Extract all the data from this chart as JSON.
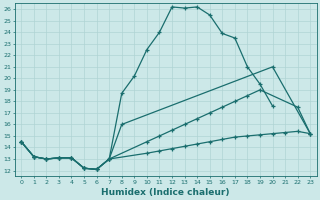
{
  "xlabel": "Humidex (Indice chaleur)",
  "bg_color": "#cce8e8",
  "line_color": "#1a6e6e",
  "grid_color": "#b0d4d4",
  "xlim": [
    -0.5,
    23.5
  ],
  "ylim": [
    11.5,
    26.5
  ],
  "xticks": [
    0,
    1,
    2,
    3,
    4,
    5,
    6,
    7,
    8,
    9,
    10,
    11,
    12,
    13,
    14,
    15,
    16,
    17,
    18,
    19,
    20,
    21,
    22,
    23
  ],
  "yticks": [
    12,
    13,
    14,
    15,
    16,
    17,
    18,
    19,
    20,
    21,
    22,
    23,
    24,
    25,
    26
  ],
  "lines": [
    {
      "x": [
        0,
        1,
        2,
        3,
        4,
        5,
        6,
        7,
        8,
        9,
        10,
        11,
        12,
        13,
        14,
        15,
        16,
        17,
        18,
        19,
        20,
        21,
        22,
        23
      ],
      "y": [
        14.5,
        13.2,
        13.0,
        13.1,
        13.1,
        12.2,
        12.1,
        13.0,
        18.7,
        20.2,
        22.5,
        24.0,
        26.2,
        26.1,
        26.2,
        25.5,
        23.9,
        23.5,
        21.0,
        19.5,
        17.6,
        null,
        null,
        null
      ]
    },
    {
      "x": [
        0,
        1,
        2,
        3,
        4,
        5,
        6,
        7,
        8,
        9,
        10,
        11,
        12,
        13,
        14,
        15,
        16,
        17,
        18,
        19,
        20,
        21,
        22,
        23
      ],
      "y": [
        14.5,
        13.2,
        13.0,
        13.1,
        13.1,
        12.2,
        12.1,
        13.0,
        16.0,
        null,
        null,
        null,
        null,
        null,
        null,
        null,
        null,
        null,
        null,
        null,
        21.0,
        null,
        null,
        15.2
      ]
    },
    {
      "x": [
        0,
        1,
        2,
        3,
        4,
        5,
        6,
        7,
        8,
        9,
        10,
        11,
        12,
        13,
        14,
        15,
        16,
        17,
        18,
        19,
        20,
        21,
        22,
        23
      ],
      "y": [
        14.5,
        13.2,
        13.0,
        13.1,
        13.1,
        12.2,
        12.1,
        13.0,
        null,
        null,
        14.5,
        15.0,
        15.5,
        16.0,
        16.5,
        17.0,
        17.5,
        18.0,
        18.5,
        19.0,
        null,
        null,
        17.5,
        15.2
      ]
    },
    {
      "x": [
        0,
        1,
        2,
        3,
        4,
        5,
        6,
        7,
        8,
        9,
        10,
        11,
        12,
        13,
        14,
        15,
        16,
        17,
        18,
        19,
        20,
        21,
        22,
        23
      ],
      "y": [
        14.5,
        13.2,
        13.0,
        13.1,
        13.1,
        12.2,
        12.1,
        13.0,
        null,
        null,
        13.5,
        13.7,
        13.9,
        14.1,
        14.3,
        14.5,
        14.7,
        14.9,
        15.0,
        15.1,
        15.2,
        15.3,
        15.4,
        15.2
      ]
    }
  ]
}
